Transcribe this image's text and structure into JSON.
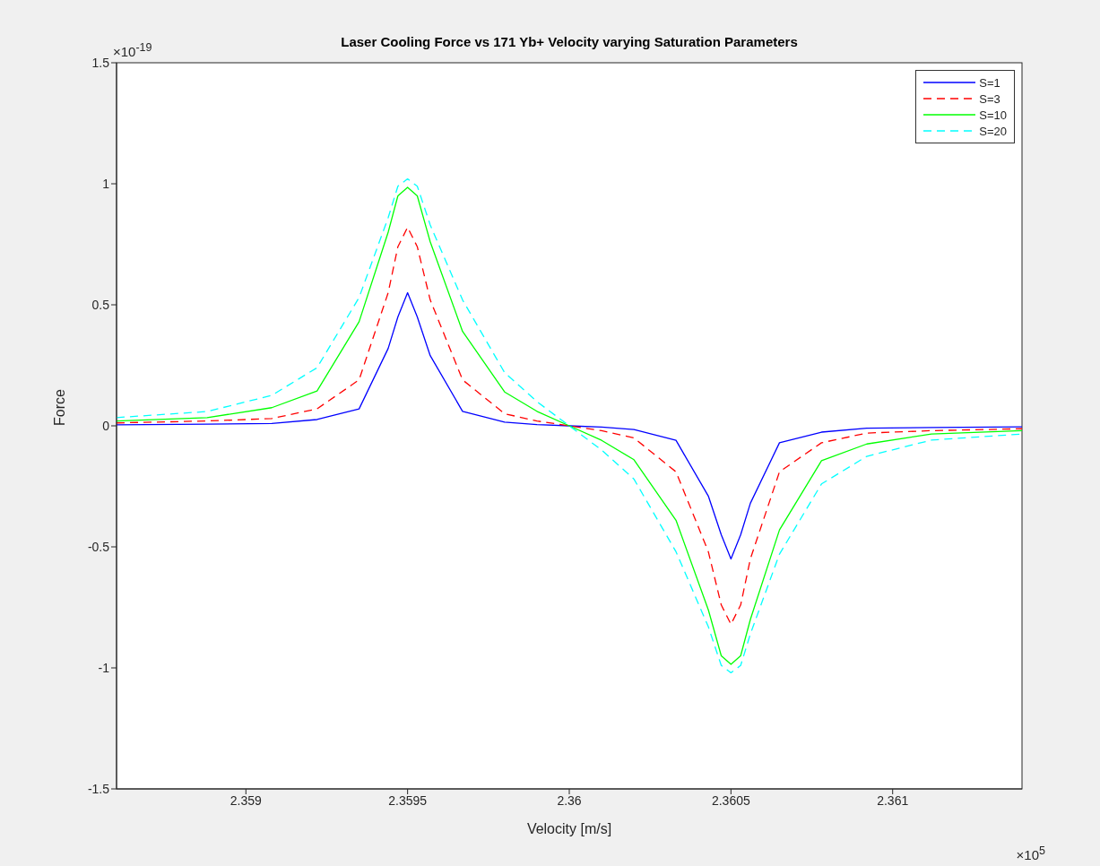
{
  "chart_data": {
    "type": "line",
    "title": "Laser Cooling Force vs 171 Yb+ Velocity varying Saturation Parameters",
    "xlabel": "Velocity [m/s]",
    "ylabel": "Force",
    "annotations": [
      "×10$^{-19}$",
      "×10$^{5}$"
    ],
    "x": [
      2.3586,
      2.35888,
      2.35908,
      2.35922,
      2.35935,
      2.35944,
      2.35947,
      2.3595,
      2.35953,
      2.35957,
      2.35967,
      2.3598,
      2.3599,
      2.36,
      2.3601,
      2.3602,
      2.36033,
      2.36043,
      2.36047,
      2.3605,
      2.36053,
      2.36056,
      2.36065,
      2.36078,
      2.36092,
      2.36112,
      2.3614
    ],
    "series": [
      {
        "name": "S=1",
        "color": "#0000ff",
        "line_style": "solid",
        "values": [
          0.004,
          0.007,
          0.01,
          0.026,
          0.07,
          0.32,
          0.45,
          0.55,
          0.45,
          0.29,
          0.06,
          0.015,
          0.005,
          0,
          -0.005,
          -0.015,
          -0.06,
          -0.29,
          -0.45,
          -0.55,
          -0.45,
          -0.32,
          -0.07,
          -0.026,
          -0.01,
          -0.007,
          -0.004
        ]
      },
      {
        "name": "S=3",
        "color": "#ff0000",
        "line_style": "dashed",
        "values": [
          0.012,
          0.02,
          0.03,
          0.07,
          0.19,
          0.55,
          0.74,
          0.82,
          0.74,
          0.52,
          0.19,
          0.05,
          0.02,
          0,
          -0.02,
          -0.05,
          -0.19,
          -0.52,
          -0.74,
          -0.82,
          -0.74,
          -0.55,
          -0.19,
          -0.07,
          -0.03,
          -0.02,
          -0.012
        ]
      },
      {
        "name": "S=10",
        "color": "#00ff00",
        "line_style": "solid",
        "values": [
          0.02,
          0.034,
          0.075,
          0.144,
          0.43,
          0.8,
          0.95,
          0.985,
          0.95,
          0.76,
          0.39,
          0.14,
          0.06,
          0,
          -0.06,
          -0.14,
          -0.39,
          -0.76,
          -0.95,
          -0.985,
          -0.95,
          -0.8,
          -0.43,
          -0.144,
          -0.075,
          -0.034,
          -0.02
        ]
      },
      {
        "name": "S=20",
        "color": "#00ffff",
        "line_style": "dashed",
        "values": [
          0.034,
          0.059,
          0.126,
          0.24,
          0.53,
          0.86,
          0.99,
          1.02,
          0.99,
          0.83,
          0.52,
          0.22,
          0.1,
          0,
          -0.1,
          -0.22,
          -0.52,
          -0.83,
          -0.99,
          -1.02,
          -0.99,
          -0.86,
          -0.53,
          -0.24,
          -0.126,
          -0.059,
          -0.034
        ]
      }
    ],
    "xlim": [
      2.3586,
      2.3614
    ],
    "xticks": [
      2.359,
      2.3595,
      2.36,
      2.3605,
      2.361
    ],
    "ylim": [
      -1.5,
      1.5
    ],
    "yticks": [
      -1.5,
      -1,
      -0.5,
      0,
      0.5,
      1,
      1.5
    ],
    "grid": false,
    "legend": "top right",
    "marker": "none"
  }
}
